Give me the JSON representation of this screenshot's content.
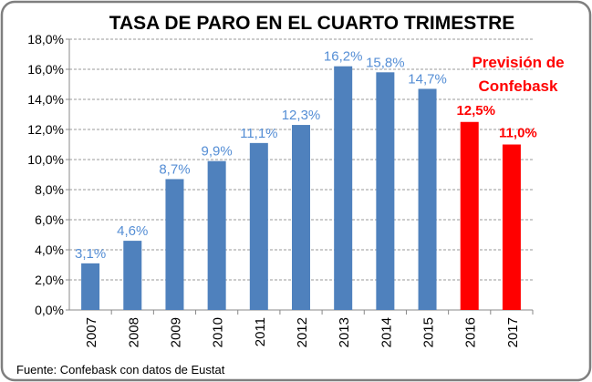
{
  "chart_data": {
    "type": "bar",
    "title": "TASA DE PARO EN EL CUARTO TRIMESTRE",
    "categories": [
      "2007",
      "2008",
      "2009",
      "2010",
      "2011",
      "2012",
      "2013",
      "2014",
      "2015",
      "2016",
      "2017"
    ],
    "values": [
      3.1,
      4.6,
      8.7,
      9.9,
      11.1,
      12.3,
      16.2,
      15.8,
      14.7,
      12.5,
      11.0
    ],
    "data_labels": [
      "3,1%",
      "4,6%",
      "8,7%",
      "9,9%",
      "11,1%",
      "12,3%",
      "16,2%",
      "15,8%",
      "14,7%",
      "12,5%",
      "11,0%"
    ],
    "forecast": [
      false,
      false,
      false,
      false,
      false,
      false,
      false,
      false,
      false,
      true,
      true
    ],
    "ylim": [
      0,
      18
    ],
    "yticks": [
      "0,0%",
      "2,0%",
      "4,0%",
      "6,0%",
      "8,0%",
      "10,0%",
      "12,0%",
      "14,0%",
      "16,0%",
      "18,0%"
    ],
    "grid": true,
    "colors": {
      "actual": "#4F81BD",
      "actual_label": "#558ED5",
      "forecast": "#FF0000",
      "border": "#7F7F7F"
    },
    "annotation": [
      "Previsión de",
      "Confebask"
    ],
    "source": "Fuente: Confebask con datos de Eustat"
  }
}
